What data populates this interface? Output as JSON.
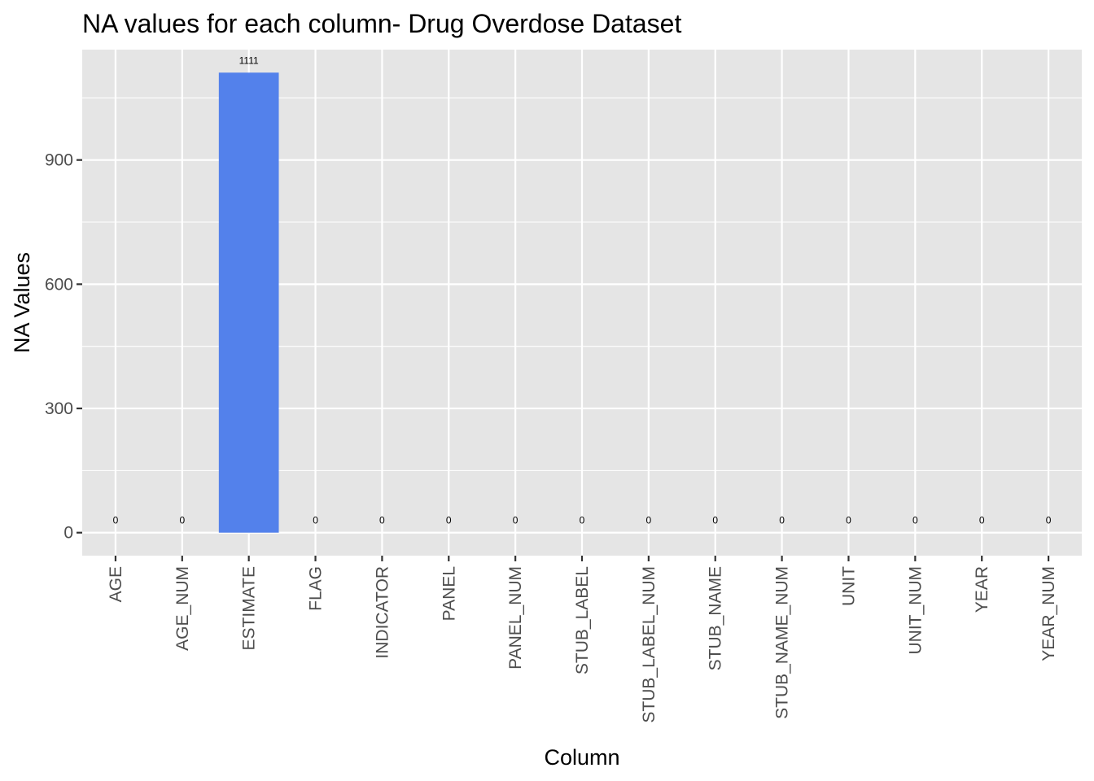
{
  "chart_data": {
    "type": "bar",
    "title": "NA values for each column- Drug Overdose Dataset",
    "xlabel": "Column",
    "ylabel": "NA Values",
    "categories": [
      "AGE",
      "AGE_NUM",
      "ESTIMATE",
      "FLAG",
      "INDICATOR",
      "PANEL",
      "PANEL_NUM",
      "STUB_LABEL",
      "STUB_LABEL_NUM",
      "STUB_NAME",
      "STUB_NAME_NUM",
      "UNIT",
      "UNIT_NUM",
      "YEAR",
      "YEAR_NUM"
    ],
    "values": [
      0,
      0,
      1111,
      0,
      0,
      0,
      0,
      0,
      0,
      0,
      0,
      0,
      0,
      0,
      0
    ],
    "data_labels": [
      "0",
      "0",
      "1111",
      "0",
      "0",
      "0",
      "0",
      "0",
      "0",
      "0",
      "0",
      "0",
      "0",
      "0",
      "0"
    ],
    "y_ticks": [
      0,
      300,
      600,
      900
    ],
    "y_tick_labels": [
      "0",
      "300",
      "600",
      "900"
    ],
    "ylim": [
      -55.55,
      1166.55
    ],
    "grid": true,
    "legend": "none",
    "bar_color": "#5381EB",
    "panel_background": "#E5E5E5",
    "grid_color": "#FFFFFF"
  }
}
